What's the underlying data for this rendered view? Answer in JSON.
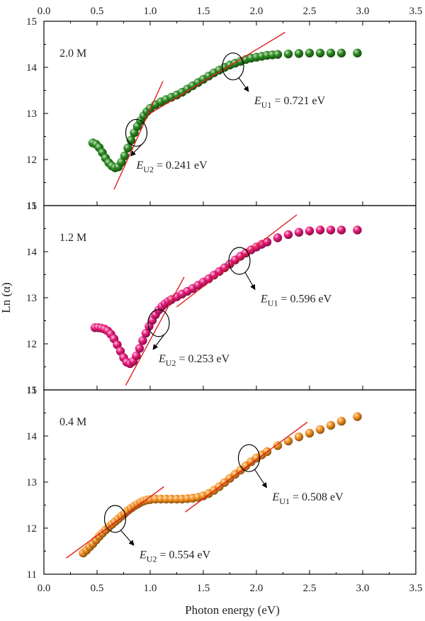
{
  "chart_data": {
    "type": "scatter",
    "xlabel": "Photon energy (eV)",
    "ylabel": "Ln (α)",
    "xlim": [
      0.0,
      3.5
    ],
    "ylim": [
      11,
      15
    ],
    "xticks": [
      "0.0",
      "0.5",
      "1.0",
      "1.5",
      "2.0",
      "2.5",
      "3.0",
      "3.5"
    ],
    "yticks": [
      "11",
      "12",
      "13",
      "14",
      "15"
    ],
    "grid": false,
    "panels": [
      {
        "label": "2.0 M",
        "color": "#2a8a1e",
        "x": [
          0.46,
          0.49,
          0.52,
          0.55,
          0.58,
          0.61,
          0.64,
          0.67,
          0.7,
          0.73,
          0.76,
          0.79,
          0.82,
          0.85,
          0.88,
          0.91,
          0.94,
          0.97,
          1.0,
          1.05,
          1.1,
          1.15,
          1.2,
          1.25,
          1.3,
          1.35,
          1.4,
          1.45,
          1.5,
          1.55,
          1.6,
          1.65,
          1.7,
          1.75,
          1.8,
          1.85,
          1.9,
          1.95,
          2.0,
          2.05,
          2.1,
          2.15,
          2.2,
          2.3,
          2.4,
          2.5,
          2.6,
          2.7,
          2.8,
          2.95
        ],
        "y": [
          12.36,
          12.33,
          12.26,
          12.15,
          12.03,
          11.93,
          11.86,
          11.82,
          11.84,
          11.94,
          12.08,
          12.25,
          12.42,
          12.58,
          12.72,
          12.84,
          12.95,
          13.04,
          13.11,
          13.19,
          13.25,
          13.3,
          13.35,
          13.4,
          13.46,
          13.53,
          13.6,
          13.67,
          13.74,
          13.81,
          13.88,
          13.94,
          14.0,
          14.05,
          14.09,
          14.13,
          14.17,
          14.2,
          14.22,
          14.24,
          14.26,
          14.27,
          14.28,
          14.29,
          14.3,
          14.31,
          14.31,
          14.31,
          14.31,
          14.31
        ],
        "fit_lines": [
          {
            "x": [
              0.66,
              1.12
            ],
            "y": [
              11.35,
              13.7
            ]
          },
          {
            "x": [
              1.0,
              2.27
            ],
            "y": [
              13.0,
              14.76
            ]
          }
        ],
        "annotations": [
          {
            "symbol": "E",
            "subscript": "U1",
            "value": " = 0.721 eV",
            "cx": 1.78,
            "cy": 14.02,
            "tx": 1.98,
            "ty": 13.2
          },
          {
            "symbol": "E",
            "subscript": "U2",
            "value": " = 0.241 eV",
            "cx": 0.87,
            "cy": 12.58,
            "tx": 0.87,
            "ty": 11.8
          }
        ]
      },
      {
        "label": "1.2 M",
        "color": "#e8197a",
        "x": [
          0.48,
          0.51,
          0.54,
          0.57,
          0.6,
          0.63,
          0.66,
          0.69,
          0.72,
          0.75,
          0.78,
          0.81,
          0.84,
          0.87,
          0.9,
          0.93,
          0.96,
          0.99,
          1.02,
          1.05,
          1.08,
          1.11,
          1.14,
          1.17,
          1.2,
          1.25,
          1.3,
          1.35,
          1.4,
          1.45,
          1.5,
          1.55,
          1.6,
          1.65,
          1.7,
          1.75,
          1.8,
          1.85,
          1.9,
          1.95,
          2.0,
          2.05,
          2.1,
          2.2,
          2.3,
          2.4,
          2.5,
          2.6,
          2.7,
          2.8,
          2.95
        ],
        "y": [
          12.35,
          12.35,
          12.34,
          12.32,
          12.28,
          12.21,
          12.11,
          11.98,
          11.84,
          11.7,
          11.6,
          11.57,
          11.62,
          11.74,
          11.9,
          12.07,
          12.23,
          12.38,
          12.51,
          12.63,
          12.73,
          12.81,
          12.87,
          12.92,
          12.96,
          13.02,
          13.08,
          13.14,
          13.2,
          13.27,
          13.34,
          13.41,
          13.49,
          13.57,
          13.65,
          13.73,
          13.82,
          13.9,
          13.97,
          14.04,
          14.1,
          14.16,
          14.21,
          14.3,
          14.37,
          14.42,
          14.45,
          14.47,
          14.47,
          14.47,
          14.47
        ],
        "fit_lines": [
          {
            "x": [
              0.77,
              1.32
            ],
            "y": [
              11.1,
              13.45
            ]
          },
          {
            "x": [
              1.25,
              2.38
            ],
            "y": [
              12.8,
              14.8
            ]
          }
        ],
        "annotations": [
          {
            "symbol": "E",
            "subscript": "U1",
            "value": " = 0.596 eV",
            "cx": 1.84,
            "cy": 13.8,
            "tx": 2.04,
            "ty": 12.9
          },
          {
            "symbol": "E",
            "subscript": "U2",
            "value": " = 0.253 eV",
            "cx": 1.08,
            "cy": 12.45,
            "tx": 1.08,
            "ty": 11.6
          }
        ]
      },
      {
        "label": "0.4 M",
        "color": "#f5901e",
        "x": [
          0.37,
          0.4,
          0.43,
          0.46,
          0.49,
          0.52,
          0.55,
          0.58,
          0.61,
          0.64,
          0.67,
          0.7,
          0.73,
          0.76,
          0.79,
          0.82,
          0.85,
          0.88,
          0.91,
          0.94,
          0.97,
          1.0,
          1.05,
          1.1,
          1.15,
          1.2,
          1.25,
          1.3,
          1.35,
          1.4,
          1.45,
          1.5,
          1.55,
          1.6,
          1.65,
          1.7,
          1.75,
          1.8,
          1.85,
          1.9,
          1.95,
          2.0,
          2.05,
          2.1,
          2.2,
          2.3,
          2.4,
          2.5,
          2.6,
          2.7,
          2.8,
          2.95
        ],
        "y": [
          11.46,
          11.52,
          11.59,
          11.66,
          11.74,
          11.82,
          11.89,
          11.96,
          12.02,
          12.08,
          12.14,
          12.2,
          12.26,
          12.32,
          12.38,
          12.43,
          12.48,
          12.52,
          12.56,
          12.59,
          12.61,
          12.62,
          12.63,
          12.63,
          12.63,
          12.63,
          12.63,
          12.63,
          12.64,
          12.65,
          12.67,
          12.7,
          12.75,
          12.82,
          12.9,
          12.99,
          13.08,
          13.17,
          13.26,
          13.35,
          13.44,
          13.52,
          13.59,
          13.66,
          13.79,
          13.89,
          13.98,
          14.06,
          14.14,
          14.23,
          14.32,
          14.42
        ],
        "fit_lines": [
          {
            "x": [
              0.21,
              1.13
            ],
            "y": [
              11.35,
              12.9
            ]
          },
          {
            "x": [
              1.33,
              2.48
            ],
            "y": [
              12.35,
              14.3
            ]
          }
        ],
        "annotations": [
          {
            "symbol": "E",
            "subscript": "U1",
            "value": " = 0.508 eV",
            "cx": 1.93,
            "cy": 13.52,
            "tx": 2.15,
            "ty": 12.6
          },
          {
            "symbol": "E",
            "subscript": "U2",
            "value": " = 0.554 eV",
            "cx": 0.67,
            "cy": 12.2,
            "tx": 0.9,
            "ty": 11.35
          }
        ]
      }
    ]
  }
}
